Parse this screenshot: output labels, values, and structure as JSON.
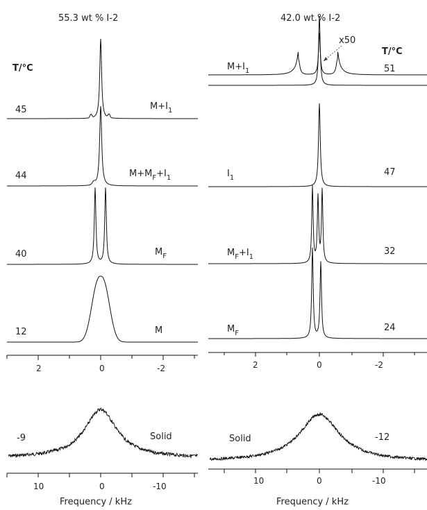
{
  "left_panel": {
    "title": "55.3 wt % I-2",
    "temp_heading": "T/°C",
    "spectra": [
      {
        "temp": "45",
        "phase": "M+I₁"
      },
      {
        "temp": "44",
        "phase": "M+M_F+I₁"
      },
      {
        "temp": "40",
        "phase": "M_F"
      },
      {
        "temp": "12",
        "phase": "M"
      }
    ],
    "narrow_ticks": [
      "2",
      "0",
      "-2"
    ],
    "solid": {
      "temp": "-9",
      "phase": "Solid"
    },
    "wide_ticks": [
      "10",
      "0",
      "-10"
    ],
    "xlabel": "Frequency / kHz"
  },
  "right_panel": {
    "title": "42.0 wt.% I-2",
    "temp_heading": "T/°C",
    "inset_label": "x50",
    "spectra": [
      {
        "temp": "51",
        "phase": "M+I₁"
      },
      {
        "temp": "47",
        "phase": "I₁"
      },
      {
        "temp": "32",
        "phase": "M_F+I₁"
      },
      {
        "temp": "24",
        "phase": "M_F"
      }
    ],
    "narrow_ticks": [
      "2",
      "0",
      "-2"
    ],
    "solid": {
      "temp": "-12",
      "phase": "Solid"
    },
    "wide_ticks": [
      "10",
      "0",
      "-10"
    ],
    "xlabel": "Frequency / kHz"
  },
  "chart_data": [
    {
      "type": "line",
      "panel": "left-narrow",
      "xlabel": "",
      "xlim": [
        3,
        -3
      ],
      "series": [
        {
          "temp": 45,
          "phase": "M+I1",
          "shape": "single sharp peak at 0 kHz with small satellites near ±0.3 kHz"
        },
        {
          "temp": 44,
          "phase": "M+MF+I1",
          "shape": "single sharp peak at 0 kHz"
        },
        {
          "temp": 40,
          "phase": "MF",
          "peaks_kHz": [
            0.25,
            -0.25
          ],
          "shape": "quadrupolar doublet"
        },
        {
          "temp": 12,
          "phase": "M",
          "shape": "broad peak centered at 0 kHz, width ~0.7 kHz"
        }
      ]
    },
    {
      "type": "line",
      "panel": "left-wide",
      "xlabel": "Frequency / kHz",
      "xlim": [
        15,
        -15
      ],
      "series": [
        {
          "temp": -9,
          "phase": "Solid",
          "shape": "broad Lorentzian-like line centered at 0 kHz, FWHM ~6 kHz"
        }
      ]
    },
    {
      "type": "line",
      "panel": "right-narrow",
      "xlim": [
        4,
        -4
      ],
      "series": [
        {
          "temp": 51,
          "phase": "M+I1",
          "shape": "sharp central peak at 0 kHz with x50 expanded doublet at about ±0.8 kHz"
        },
        {
          "temp": 47,
          "phase": "I1",
          "shape": "single sharp peak at 0 kHz"
        },
        {
          "temp": 32,
          "phase": "MF+I1",
          "peaks_kHz": [
            0.3,
            0,
            -0.2
          ],
          "shape": "doublet plus central peak"
        },
        {
          "temp": 24,
          "phase": "MF",
          "peaks_kHz": [
            0.3,
            -0.2
          ],
          "shape": "quadrupolar doublet"
        }
      ]
    },
    {
      "type": "line",
      "panel": "right-wide",
      "xlabel": "Frequency / kHz",
      "xlim": [
        16,
        -16
      ],
      "series": [
        {
          "temp": -12,
          "phase": "Solid",
          "shape": "broad line centered at 0 kHz, FWHM ~8 kHz"
        }
      ]
    }
  ]
}
